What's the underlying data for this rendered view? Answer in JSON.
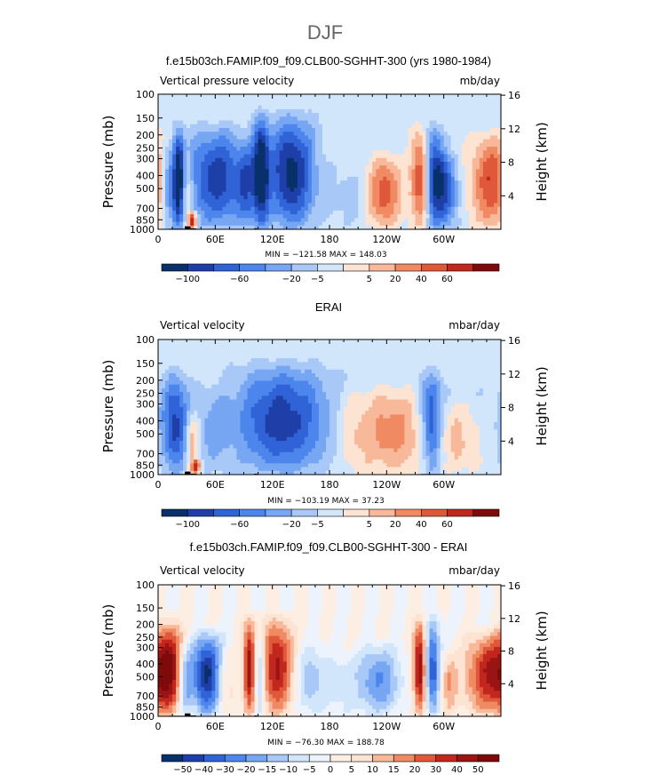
{
  "page_title": "DJF",
  "colors": {
    "scale_12": [
      "#08306b",
      "#1f3fa8",
      "#2f63d6",
      "#4c86ec",
      "#77a6f2",
      "#a8c8f8",
      "#d2e6fb",
      "#fde3d2",
      "#f8b89a",
      "#ef8a63",
      "#e0583a",
      "#c2271d",
      "#7f0a0a"
    ],
    "scale_diff": [
      "#08306b",
      "#1f3fa8",
      "#2f63d6",
      "#4c86ec",
      "#77a6f2",
      "#a8c8f8",
      "#d2e6fb",
      "#ecf3fd",
      "#fdeee3",
      "#fde3d2",
      "#f8b89a",
      "#ef8a63",
      "#e0583a",
      "#c2271d",
      "#9a1414",
      "#7f0a0a"
    ],
    "land_mask": "#000000"
  },
  "chart_data": [
    {
      "type": "heatmap",
      "id": "panel-model",
      "title": "f.e15b03ch.FAMIP.f09_f09.CLB00-SGHHT-300 (yrs 1980-1984)",
      "left_label": "Vertical pressure velocity",
      "right_label": "mb/day",
      "ylabel": "Pressure (mb)",
      "ylabel_right": "Height (km)",
      "x_ticks": [
        "0",
        "60E",
        "120E",
        "180",
        "120W",
        "60W"
      ],
      "x_tick_values": [
        0,
        60,
        120,
        180,
        240,
        300
      ],
      "x_range": [
        0,
        360
      ],
      "y_ticks": [
        "100",
        "150",
        "200",
        "250",
        "300",
        "400",
        "500",
        "700",
        "850",
        "1000"
      ],
      "y_tick_values": [
        100,
        150,
        200,
        250,
        300,
        400,
        500,
        700,
        850,
        1000
      ],
      "y_range": [
        1000,
        100
      ],
      "height_ticks": [
        "16",
        "12",
        "8",
        "4"
      ],
      "height_tick_values": [
        16,
        12,
        8,
        4
      ],
      "stats": "MIN = −121.58   MAX =  148.03",
      "colorbar_labels": [
        "−100",
        "−60",
        "−20",
        "−5",
        "5",
        "20",
        "40",
        "60"
      ],
      "colorbar_label_slots": [
        1,
        3,
        5,
        6,
        8,
        9,
        10,
        11
      ],
      "features": [
        {
          "lon": 12,
          "half": 7,
          "amp": -0.6,
          "pmin": 200
        },
        {
          "lon": 22,
          "half": 4,
          "amp": -1.0,
          "pmin": 150
        },
        {
          "lon": 30,
          "half": 5,
          "amp": 0.35,
          "pmin": 250
        },
        {
          "lon": 36,
          "half": 3,
          "amp": 0.95,
          "pmin": 700
        },
        {
          "lon": 62,
          "half": 22,
          "amp": -0.85,
          "pmin": 150
        },
        {
          "lon": 92,
          "half": 6,
          "amp": -0.45,
          "pmin": 200
        },
        {
          "lon": 108,
          "half": 6,
          "amp": -1.0,
          "pmin": 120
        },
        {
          "lon": 140,
          "half": 17,
          "amp": -1.0,
          "pmin": 120
        },
        {
          "lon": 200,
          "half": 12,
          "amp": -0.15,
          "pmin": 300
        },
        {
          "lon": 238,
          "half": 12,
          "amp": 0.7,
          "pmin": 250
        },
        {
          "lon": 276,
          "half": 7,
          "amp": 0.85,
          "pmin": 150
        },
        {
          "lon": 290,
          "half": 8,
          "amp": -1.0,
          "pmin": 150
        },
        {
          "lon": 305,
          "half": 8,
          "amp": -0.55,
          "pmin": 250
        },
        {
          "lon": 350,
          "half": 15,
          "amp": 0.75,
          "pmin": 170
        }
      ],
      "land_mask": [
        [
          12,
          28,
          990
        ],
        [
          28,
          34,
          950
        ],
        [
          34,
          40,
          985
        ],
        [
          101,
          104,
          985
        ],
        [
          276,
          300,
          990
        ]
      ]
    },
    {
      "type": "heatmap",
      "id": "panel-obs",
      "title": "ERAI",
      "left_label": "Vertical velocity",
      "right_label": "mbar/day",
      "ylabel": "Pressure (mb)",
      "ylabel_right": "Height (km)",
      "x_ticks": [
        "0",
        "60E",
        "120E",
        "180",
        "120W",
        "60W"
      ],
      "x_tick_values": [
        0,
        60,
        120,
        180,
        240,
        300
      ],
      "x_range": [
        0,
        360
      ],
      "y_ticks": [
        "100",
        "150",
        "200",
        "250",
        "300",
        "400",
        "500",
        "700",
        "850",
        "1000"
      ],
      "y_tick_values": [
        100,
        150,
        200,
        250,
        300,
        400,
        500,
        700,
        850,
        1000
      ],
      "y_range": [
        1000,
        100
      ],
      "height_ticks": [
        "16",
        "12",
        "8",
        "4"
      ],
      "height_tick_values": [
        16,
        12,
        8,
        4
      ],
      "stats": "MIN = −103.19   MAX =  37.23",
      "colorbar_labels": [
        "−100",
        "−60",
        "−20",
        "−5",
        "5",
        "20",
        "40",
        "60"
      ],
      "colorbar_label_slots": [
        1,
        3,
        5,
        6,
        8,
        9,
        10,
        11
      ],
      "features": [
        {
          "lon": 18,
          "half": 10,
          "amp": -0.8,
          "pmin": 150
        },
        {
          "lon": 36,
          "half": 5,
          "amp": 0.55,
          "pmin": 300
        },
        {
          "lon": 40,
          "half": 3,
          "amp": 0.75,
          "pmin": 750
        },
        {
          "lon": 55,
          "half": 12,
          "amp": -0.25,
          "pmin": 200
        },
        {
          "lon": 130,
          "half": 35,
          "amp": -0.85,
          "pmin": 130
        },
        {
          "lon": 205,
          "half": 15,
          "amp": 0.25,
          "pmin": 200
        },
        {
          "lon": 245,
          "half": 20,
          "amp": 0.5,
          "pmin": 200
        },
        {
          "lon": 288,
          "half": 8,
          "amp": -0.85,
          "pmin": 150
        },
        {
          "lon": 315,
          "half": 25,
          "amp": 0.35,
          "pmin": 250
        },
        {
          "lon": 340,
          "half": 20,
          "amp": -0.15,
          "pmin": 200
        }
      ],
      "land_mask": [
        [
          12,
          28,
          990
        ],
        [
          28,
          34,
          950
        ],
        [
          34,
          40,
          985
        ],
        [
          101,
          104,
          985
        ],
        [
          276,
          300,
          990
        ]
      ]
    },
    {
      "type": "heatmap",
      "id": "panel-diff",
      "title": "f.e15b03ch.FAMIP.f09_f09.CLB00-SGHHT-300 - ERAI",
      "left_label": "Vertical velocity",
      "right_label": "mbar/day",
      "ylabel": "Pressure (mb)",
      "ylabel_right": "Height (km)",
      "x_ticks": [
        "0",
        "60E",
        "120E",
        "180",
        "120W",
        "60W"
      ],
      "x_tick_values": [
        0,
        60,
        120,
        180,
        240,
        300
      ],
      "x_range": [
        0,
        360
      ],
      "y_ticks": [
        "100",
        "150",
        "200",
        "250",
        "300",
        "400",
        "500",
        "700",
        "850",
        "1000"
      ],
      "y_tick_values": [
        100,
        150,
        200,
        250,
        300,
        400,
        500,
        700,
        850,
        1000
      ],
      "y_range": [
        1000,
        100
      ],
      "height_ticks": [
        "16",
        "12",
        "8",
        "4"
      ],
      "height_tick_values": [
        16,
        12,
        8,
        4
      ],
      "stats": "MIN = −76.30   MAX = 188.78",
      "colorbar_labels": [
        "−50",
        "−40",
        "−30",
        "−20",
        "−15",
        "−10",
        "−5",
        "0",
        "5",
        "10",
        "15",
        "20",
        "30",
        "40",
        "50"
      ],
      "colorbar_label_slots": [
        1,
        2,
        3,
        4,
        5,
        6,
        7,
        8,
        9,
        10,
        11,
        12,
        13,
        14,
        15
      ],
      "features": [
        {
          "lon": 12,
          "half": 10,
          "amp": 0.75,
          "pmin": 150
        },
        {
          "lon": 28,
          "half": 5,
          "amp": -0.5,
          "pmin": 250
        },
        {
          "lon": 52,
          "half": 12,
          "amp": -1.0,
          "pmin": 200
        },
        {
          "lon": 70,
          "half": 8,
          "amp": 0.35,
          "pmin": 250
        },
        {
          "lon": 96,
          "half": 5,
          "amp": 0.9,
          "pmin": 150
        },
        {
          "lon": 106,
          "half": 4,
          "amp": -0.6,
          "pmin": 200
        },
        {
          "lon": 125,
          "half": 12,
          "amp": 0.85,
          "pmin": 150
        },
        {
          "lon": 160,
          "half": 12,
          "amp": -0.35,
          "pmin": 250
        },
        {
          "lon": 195,
          "half": 12,
          "amp": -0.2,
          "pmin": 300
        },
        {
          "lon": 232,
          "half": 15,
          "amp": -0.55,
          "pmin": 250
        },
        {
          "lon": 275,
          "half": 5,
          "amp": 1.0,
          "pmin": 150
        },
        {
          "lon": 288,
          "half": 6,
          "amp": -0.8,
          "pmin": 150
        },
        {
          "lon": 305,
          "half": 6,
          "amp": 0.4,
          "pmin": 300
        },
        {
          "lon": 348,
          "half": 18,
          "amp": 0.8,
          "pmin": 200
        }
      ],
      "land_mask": [
        [
          12,
          28,
          990
        ],
        [
          28,
          34,
          950
        ],
        [
          34,
          40,
          985
        ],
        [
          101,
          104,
          985
        ],
        [
          276,
          300,
          990
        ]
      ]
    }
  ]
}
